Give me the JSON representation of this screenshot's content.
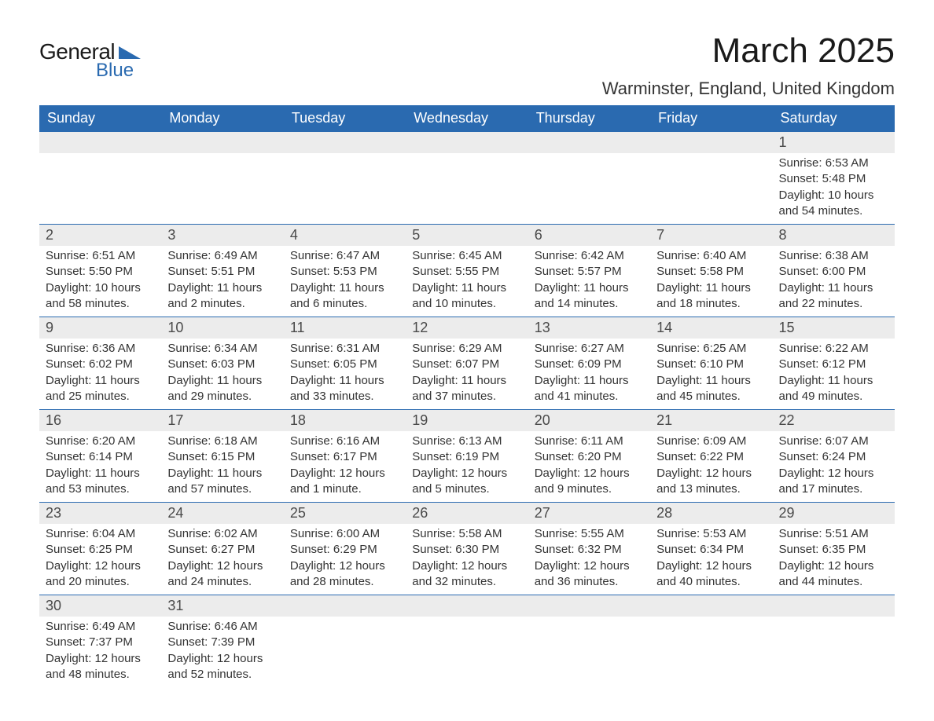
{
  "logo": {
    "word1": "General",
    "word2": "Blue",
    "triangle_color": "#2a6ab0"
  },
  "title": "March 2025",
  "location": "Warminster, England, United Kingdom",
  "colors": {
    "header_bg": "#2a6ab0",
    "header_fg": "#ffffff",
    "daynum_bg": "#ececec",
    "row_divider": "#2a6ab0",
    "text": "#333333"
  },
  "day_names": [
    "Sunday",
    "Monday",
    "Tuesday",
    "Wednesday",
    "Thursday",
    "Friday",
    "Saturday"
  ],
  "weeks": [
    [
      null,
      null,
      null,
      null,
      null,
      null,
      {
        "n": "1",
        "sr": "Sunrise: 6:53 AM",
        "ss": "Sunset: 5:48 PM",
        "d1": "Daylight: 10 hours",
        "d2": "and 54 minutes."
      }
    ],
    [
      {
        "n": "2",
        "sr": "Sunrise: 6:51 AM",
        "ss": "Sunset: 5:50 PM",
        "d1": "Daylight: 10 hours",
        "d2": "and 58 minutes."
      },
      {
        "n": "3",
        "sr": "Sunrise: 6:49 AM",
        "ss": "Sunset: 5:51 PM",
        "d1": "Daylight: 11 hours",
        "d2": "and 2 minutes."
      },
      {
        "n": "4",
        "sr": "Sunrise: 6:47 AM",
        "ss": "Sunset: 5:53 PM",
        "d1": "Daylight: 11 hours",
        "d2": "and 6 minutes."
      },
      {
        "n": "5",
        "sr": "Sunrise: 6:45 AM",
        "ss": "Sunset: 5:55 PM",
        "d1": "Daylight: 11 hours",
        "d2": "and 10 minutes."
      },
      {
        "n": "6",
        "sr": "Sunrise: 6:42 AM",
        "ss": "Sunset: 5:57 PM",
        "d1": "Daylight: 11 hours",
        "d2": "and 14 minutes."
      },
      {
        "n": "7",
        "sr": "Sunrise: 6:40 AM",
        "ss": "Sunset: 5:58 PM",
        "d1": "Daylight: 11 hours",
        "d2": "and 18 minutes."
      },
      {
        "n": "8",
        "sr": "Sunrise: 6:38 AM",
        "ss": "Sunset: 6:00 PM",
        "d1": "Daylight: 11 hours",
        "d2": "and 22 minutes."
      }
    ],
    [
      {
        "n": "9",
        "sr": "Sunrise: 6:36 AM",
        "ss": "Sunset: 6:02 PM",
        "d1": "Daylight: 11 hours",
        "d2": "and 25 minutes."
      },
      {
        "n": "10",
        "sr": "Sunrise: 6:34 AM",
        "ss": "Sunset: 6:03 PM",
        "d1": "Daylight: 11 hours",
        "d2": "and 29 minutes."
      },
      {
        "n": "11",
        "sr": "Sunrise: 6:31 AM",
        "ss": "Sunset: 6:05 PM",
        "d1": "Daylight: 11 hours",
        "d2": "and 33 minutes."
      },
      {
        "n": "12",
        "sr": "Sunrise: 6:29 AM",
        "ss": "Sunset: 6:07 PM",
        "d1": "Daylight: 11 hours",
        "d2": "and 37 minutes."
      },
      {
        "n": "13",
        "sr": "Sunrise: 6:27 AM",
        "ss": "Sunset: 6:09 PM",
        "d1": "Daylight: 11 hours",
        "d2": "and 41 minutes."
      },
      {
        "n": "14",
        "sr": "Sunrise: 6:25 AM",
        "ss": "Sunset: 6:10 PM",
        "d1": "Daylight: 11 hours",
        "d2": "and 45 minutes."
      },
      {
        "n": "15",
        "sr": "Sunrise: 6:22 AM",
        "ss": "Sunset: 6:12 PM",
        "d1": "Daylight: 11 hours",
        "d2": "and 49 minutes."
      }
    ],
    [
      {
        "n": "16",
        "sr": "Sunrise: 6:20 AM",
        "ss": "Sunset: 6:14 PM",
        "d1": "Daylight: 11 hours",
        "d2": "and 53 minutes."
      },
      {
        "n": "17",
        "sr": "Sunrise: 6:18 AM",
        "ss": "Sunset: 6:15 PM",
        "d1": "Daylight: 11 hours",
        "d2": "and 57 minutes."
      },
      {
        "n": "18",
        "sr": "Sunrise: 6:16 AM",
        "ss": "Sunset: 6:17 PM",
        "d1": "Daylight: 12 hours",
        "d2": "and 1 minute."
      },
      {
        "n": "19",
        "sr": "Sunrise: 6:13 AM",
        "ss": "Sunset: 6:19 PM",
        "d1": "Daylight: 12 hours",
        "d2": "and 5 minutes."
      },
      {
        "n": "20",
        "sr": "Sunrise: 6:11 AM",
        "ss": "Sunset: 6:20 PM",
        "d1": "Daylight: 12 hours",
        "d2": "and 9 minutes."
      },
      {
        "n": "21",
        "sr": "Sunrise: 6:09 AM",
        "ss": "Sunset: 6:22 PM",
        "d1": "Daylight: 12 hours",
        "d2": "and 13 minutes."
      },
      {
        "n": "22",
        "sr": "Sunrise: 6:07 AM",
        "ss": "Sunset: 6:24 PM",
        "d1": "Daylight: 12 hours",
        "d2": "and 17 minutes."
      }
    ],
    [
      {
        "n": "23",
        "sr": "Sunrise: 6:04 AM",
        "ss": "Sunset: 6:25 PM",
        "d1": "Daylight: 12 hours",
        "d2": "and 20 minutes."
      },
      {
        "n": "24",
        "sr": "Sunrise: 6:02 AM",
        "ss": "Sunset: 6:27 PM",
        "d1": "Daylight: 12 hours",
        "d2": "and 24 minutes."
      },
      {
        "n": "25",
        "sr": "Sunrise: 6:00 AM",
        "ss": "Sunset: 6:29 PM",
        "d1": "Daylight: 12 hours",
        "d2": "and 28 minutes."
      },
      {
        "n": "26",
        "sr": "Sunrise: 5:58 AM",
        "ss": "Sunset: 6:30 PM",
        "d1": "Daylight: 12 hours",
        "d2": "and 32 minutes."
      },
      {
        "n": "27",
        "sr": "Sunrise: 5:55 AM",
        "ss": "Sunset: 6:32 PM",
        "d1": "Daylight: 12 hours",
        "d2": "and 36 minutes."
      },
      {
        "n": "28",
        "sr": "Sunrise: 5:53 AM",
        "ss": "Sunset: 6:34 PM",
        "d1": "Daylight: 12 hours",
        "d2": "and 40 minutes."
      },
      {
        "n": "29",
        "sr": "Sunrise: 5:51 AM",
        "ss": "Sunset: 6:35 PM",
        "d1": "Daylight: 12 hours",
        "d2": "and 44 minutes."
      }
    ],
    [
      {
        "n": "30",
        "sr": "Sunrise: 6:49 AM",
        "ss": "Sunset: 7:37 PM",
        "d1": "Daylight: 12 hours",
        "d2": "and 48 minutes."
      },
      {
        "n": "31",
        "sr": "Sunrise: 6:46 AM",
        "ss": "Sunset: 7:39 PM",
        "d1": "Daylight: 12 hours",
        "d2": "and 52 minutes."
      },
      null,
      null,
      null,
      null,
      null
    ]
  ]
}
